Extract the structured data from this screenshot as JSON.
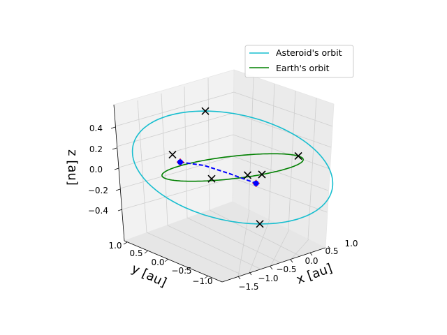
{
  "chart_data": {
    "type": "3d-line",
    "xlabel": "x [au]",
    "ylabel": "y [au]",
    "zlabel": "z [au]",
    "x_ticks": [
      "−1.5",
      "−1.0",
      "−0.5",
      "0.0",
      "0.5",
      "1.0"
    ],
    "y_ticks": [
      "1.0",
      "0.5",
      "0.0",
      "−0.5",
      "−1.0"
    ],
    "z_ticks": [
      "0.4",
      "0.2",
      "0.0",
      "−0.2",
      "−0.4"
    ],
    "xlim": [
      -1.6,
      1.2
    ],
    "ylim": [
      -1.3,
      1.2
    ],
    "zlim": [
      -0.55,
      0.55
    ],
    "grid": true,
    "legend_position": "upper-right",
    "colors": {
      "asteroid": "#17becf",
      "earth": "#008000",
      "markers": "#000000",
      "start": "#ff0000",
      "transfer": "#0000ff"
    },
    "series": [
      {
        "name": "Asteroid's orbit",
        "kind": "ellipse",
        "center": [
          0.0,
          0.0,
          0.0
        ],
        "axis_u": [
          -0.05,
          0.82,
          0.5
        ],
        "axis_v": [
          1.5,
          0.0,
          -0.18
        ],
        "color": "#17becf"
      },
      {
        "name": "Earth's orbit",
        "kind": "circle",
        "center": [
          0.0,
          0.0,
          0.0
        ],
        "radius": 1.0,
        "color": "#008000"
      }
    ],
    "x_markers": [
      [
        -0.05,
        0.82,
        0.5
      ],
      [
        -0.62,
        0.69,
        0.15
      ],
      [
        0.38,
        0.32,
        -0.14
      ],
      [
        1.0,
        -0.05,
        0.0
      ],
      [
        0.0,
        -1.0,
        0.0
      ],
      [
        0.05,
        -0.82,
        -0.5
      ],
      [
        -0.6,
        -0.6,
        0.0
      ]
    ],
    "red_markers": [
      [
        0.0,
        -0.8,
        -0.1
      ],
      [
        -0.45,
        0.8,
        0.05
      ]
    ],
    "transfer_path": [
      [
        -0.45,
        0.8,
        0.05
      ],
      [
        -0.25,
        0.42,
        0.02
      ],
      [
        -0.1,
        -0.1,
        -0.04
      ],
      [
        0.0,
        -0.8,
        -0.1
      ]
    ]
  }
}
